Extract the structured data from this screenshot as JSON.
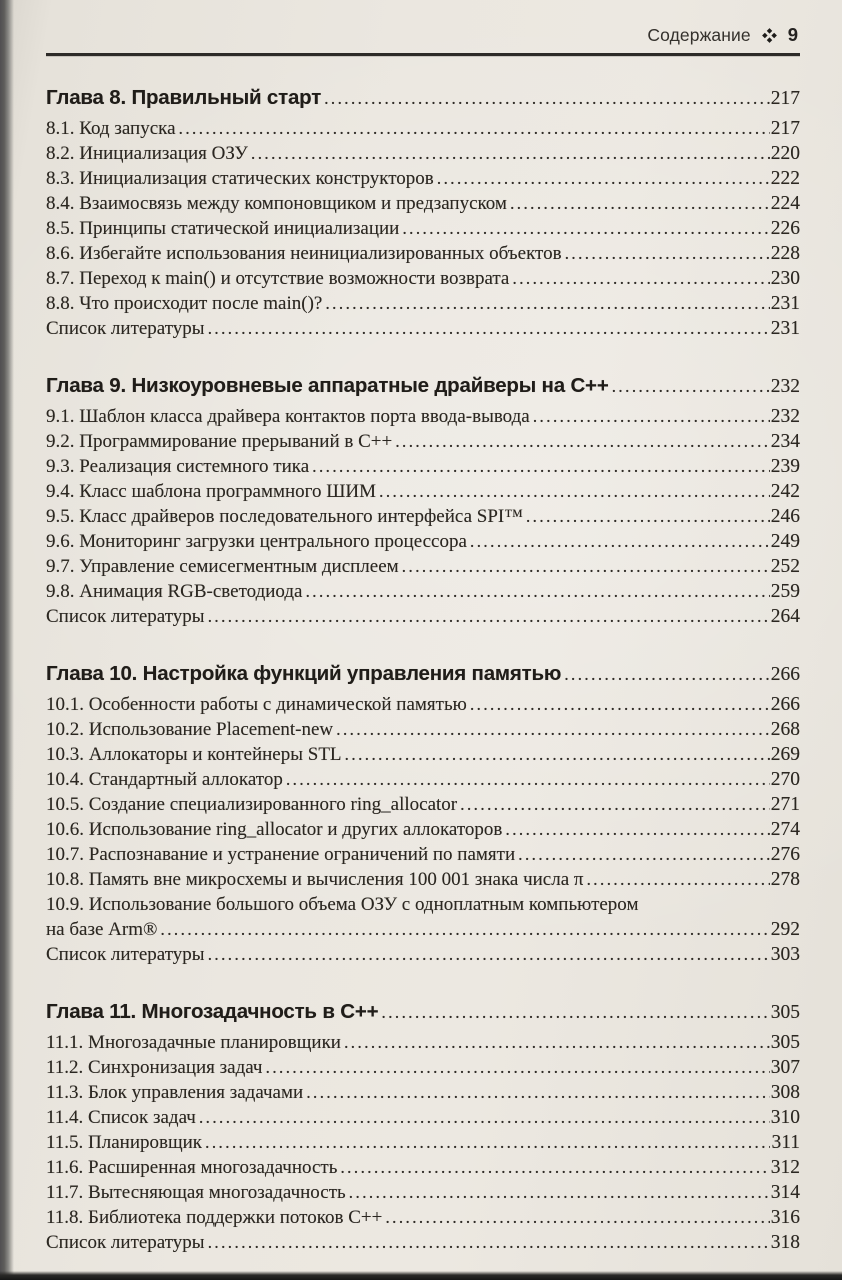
{
  "header": {
    "title": "Содержание",
    "ornament_icon": "four-diamonds",
    "page_number": "9"
  },
  "colors": {
    "paper": "#EBE7E0",
    "ink": "#2B2721",
    "edge_dark": "#2A2927"
  },
  "toc": {
    "chapters": [
      {
        "title": "Глава 8. Правильный старт",
        "page": "217",
        "entries": [
          {
            "title": "8.1. Код запуска",
            "page": "217"
          },
          {
            "title": "8.2. Инициализация ОЗУ",
            "page": "220"
          },
          {
            "title": "8.3. Инициализация статических конструкторов",
            "page": "222"
          },
          {
            "title": "8.4. Взаимосвязь между компоновщиком и предзапуском",
            "page": "224"
          },
          {
            "title": "8.5. Принципы статической инициализации",
            "page": "226"
          },
          {
            "title": "8.6. Избегайте использования неинициализированных объектов",
            "page": "228"
          },
          {
            "title": "8.7. Переход к main() и отсутствие возможности возврата",
            "page": "230"
          },
          {
            "title": "8.8. Что происходит после main()?",
            "page": "231"
          },
          {
            "title": "Список литературы",
            "page": "231"
          }
        ]
      },
      {
        "title": "Глава 9. Низкоуровневые аппаратные драйверы на C++",
        "page": "232",
        "entries": [
          {
            "title": "9.1. Шаблон класса драйвера контактов порта ввода-вывода",
            "page": "232"
          },
          {
            "title": "9.2. Программирование прерываний в C++",
            "page": "234"
          },
          {
            "title": "9.3. Реализация системного тика",
            "page": "239"
          },
          {
            "title": "9.4. Класс шаблона программного ШИМ",
            "page": "242"
          },
          {
            "title": "9.5. Класс драйверов последовательного интерфейса SPI™",
            "page": "246"
          },
          {
            "title": "9.6. Мониторинг загрузки центрального процессора",
            "page": "249"
          },
          {
            "title": "9.7. Управление семисегментным дисплеем",
            "page": "252"
          },
          {
            "title": "9.8. Анимация RGB-светодиода",
            "page": "259"
          },
          {
            "title": "Список литературы",
            "page": "264"
          }
        ]
      },
      {
        "title": "Глава 10. Настройка функций управления памятью",
        "page": "266",
        "entries": [
          {
            "title": "10.1. Особенности работы с динамической памятью",
            "page": "266"
          },
          {
            "title": "10.2. Использование Placement-new",
            "page": "268"
          },
          {
            "title": "10.3. Аллокаторы и контейнеры STL",
            "page": "269"
          },
          {
            "title": "10.4. Стандартный аллокатор",
            "page": "270"
          },
          {
            "title": "10.5. Создание специализированного ring_allocator",
            "page": "271"
          },
          {
            "title": "10.6. Использование ring_allocator и других аллокаторов",
            "page": "274"
          },
          {
            "title": "10.7. Распознавание и устранение ограничений по памяти",
            "page": "276"
          },
          {
            "title": "10.8. Память вне микросхемы и вычисления 100 001 знака числа π",
            "page": "278"
          },
          {
            "title": "10.9. Использование большого объема ОЗУ с одноплатным компьютером",
            "title2": "на базе Arm®",
            "page": "292"
          },
          {
            "title": "Список литературы",
            "page": "303"
          }
        ]
      },
      {
        "title": "Глава 11. Многозадачность в C++",
        "page": "305",
        "entries": [
          {
            "title": "11.1. Многозадачные планировщики",
            "page": "305"
          },
          {
            "title": "11.2. Синхронизация задач",
            "page": "307"
          },
          {
            "title": "11.3. Блок управления задачами",
            "page": "308"
          },
          {
            "title": "11.4. Список задач",
            "page": "310"
          },
          {
            "title": "11.5. Планировщик",
            "page": "311"
          },
          {
            "title": "11.6. Расширенная многозадачность",
            "page": "312"
          },
          {
            "title": "11.7. Вытесняющая многозадачность",
            "page": "314"
          },
          {
            "title": "11.8. Библиотека поддержки потоков C++",
            "page": "316"
          },
          {
            "title": "Список литературы",
            "page": "318"
          }
        ]
      }
    ]
  }
}
